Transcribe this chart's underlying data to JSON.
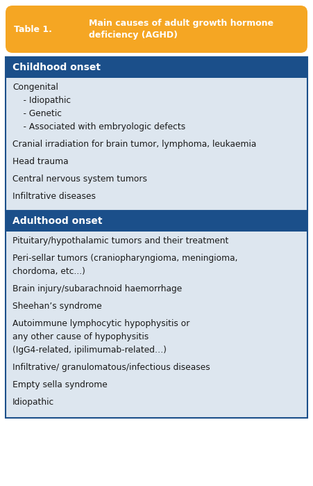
{
  "title_label": "Table 1.",
  "title_text": "Main causes of adult growth hormone\ndeficiency (AGHD)",
  "title_bg": "#F5A623",
  "title_text_color": "#FFFFFF",
  "section1_header": "Childhood onset",
  "section1_bg": "#1B4F8A",
  "section1_text_color": "#FFFFFF",
  "section2_header": "Adulthood onset",
  "section2_bg": "#1B4F8A",
  "section2_text_color": "#FFFFFF",
  "body_bg": "#DDE6EF",
  "body_text_color": "#1a1a1a",
  "outer_border_color": "#1B4F8A",
  "section1_items": [
    "Congenital\n    - Idiopathic\n    - Genetic\n    - Associated with embryologic defects",
    "Cranial irradiation for brain tumor, lymphoma, leukaemia",
    "Head trauma",
    "Central nervous system tumors",
    "Infiltrative diseases"
  ],
  "section2_items": [
    "Pituitary/hypothalamic tumors and their treatment",
    "Peri-sellar tumors (craniopharyngioma, meningioma,\nchordoma, etc...)",
    "Brain injury/subarachnoid haemorrhage",
    "Sheehan’s syndrome",
    "Autoimmune lymphocytic hypophysitis or\nany other cause of hypophysitis\n(IgG4-related, ipilimumab-related…)",
    "Infiltrative/ granulomatous/infectious diseases",
    "Empty sella syndrome",
    "Idiopathic"
  ],
  "fig_width": 4.51,
  "fig_height": 6.99,
  "dpi": 100
}
